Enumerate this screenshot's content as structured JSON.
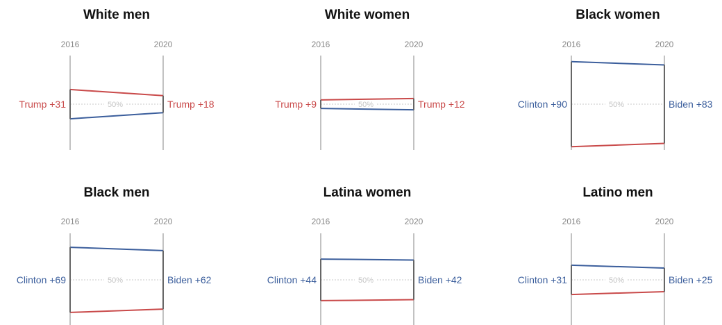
{
  "chart_data": [
    {
      "type": "slope",
      "title": "White men",
      "x": [
        "2016",
        "2020"
      ],
      "midline_label": "50%",
      "colors": {
        "dem": "#3b5e9c",
        "rep": "#c94a4a"
      },
      "start": {
        "label": "Trump +31",
        "party": "rep",
        "margin": 31
      },
      "end": {
        "label": "Trump +18",
        "party": "rep",
        "margin": 18
      }
    },
    {
      "type": "slope",
      "title": "White women",
      "x": [
        "2016",
        "2020"
      ],
      "midline_label": "50%",
      "colors": {
        "dem": "#3b5e9c",
        "rep": "#c94a4a"
      },
      "start": {
        "label": "Trump +9",
        "party": "rep",
        "margin": 9
      },
      "end": {
        "label": "Trump +12",
        "party": "rep",
        "margin": 12
      }
    },
    {
      "type": "slope",
      "title": "Black women",
      "x": [
        "2016",
        "2020"
      ],
      "midline_label": "50%",
      "colors": {
        "dem": "#3b5e9c",
        "rep": "#c94a4a"
      },
      "start": {
        "label": "Clinton +90",
        "party": "dem",
        "margin": 90
      },
      "end": {
        "label": "Biden +83",
        "party": "dem",
        "margin": 83
      }
    },
    {
      "type": "slope",
      "title": "Black men",
      "x": [
        "2016",
        "2020"
      ],
      "midline_label": "50%",
      "colors": {
        "dem": "#3b5e9c",
        "rep": "#c94a4a"
      },
      "start": {
        "label": "Clinton +69",
        "party": "dem",
        "margin": 69
      },
      "end": {
        "label": "Biden +62",
        "party": "dem",
        "margin": 62
      }
    },
    {
      "type": "slope",
      "title": "Latina women",
      "x": [
        "2016",
        "2020"
      ],
      "midline_label": "50%",
      "colors": {
        "dem": "#3b5e9c",
        "rep": "#c94a4a"
      },
      "start": {
        "label": "Clinton +44",
        "party": "dem",
        "margin": 44
      },
      "end": {
        "label": "Biden +42",
        "party": "dem",
        "margin": 42
      }
    },
    {
      "type": "slope",
      "title": "Latino men",
      "x": [
        "2016",
        "2020"
      ],
      "midline_label": "50%",
      "colors": {
        "dem": "#3b5e9c",
        "rep": "#c94a4a"
      },
      "start": {
        "label": "Clinton +31",
        "party": "dem",
        "margin": 31
      },
      "end": {
        "label": "Biden +25",
        "party": "dem",
        "margin": 25
      }
    }
  ]
}
